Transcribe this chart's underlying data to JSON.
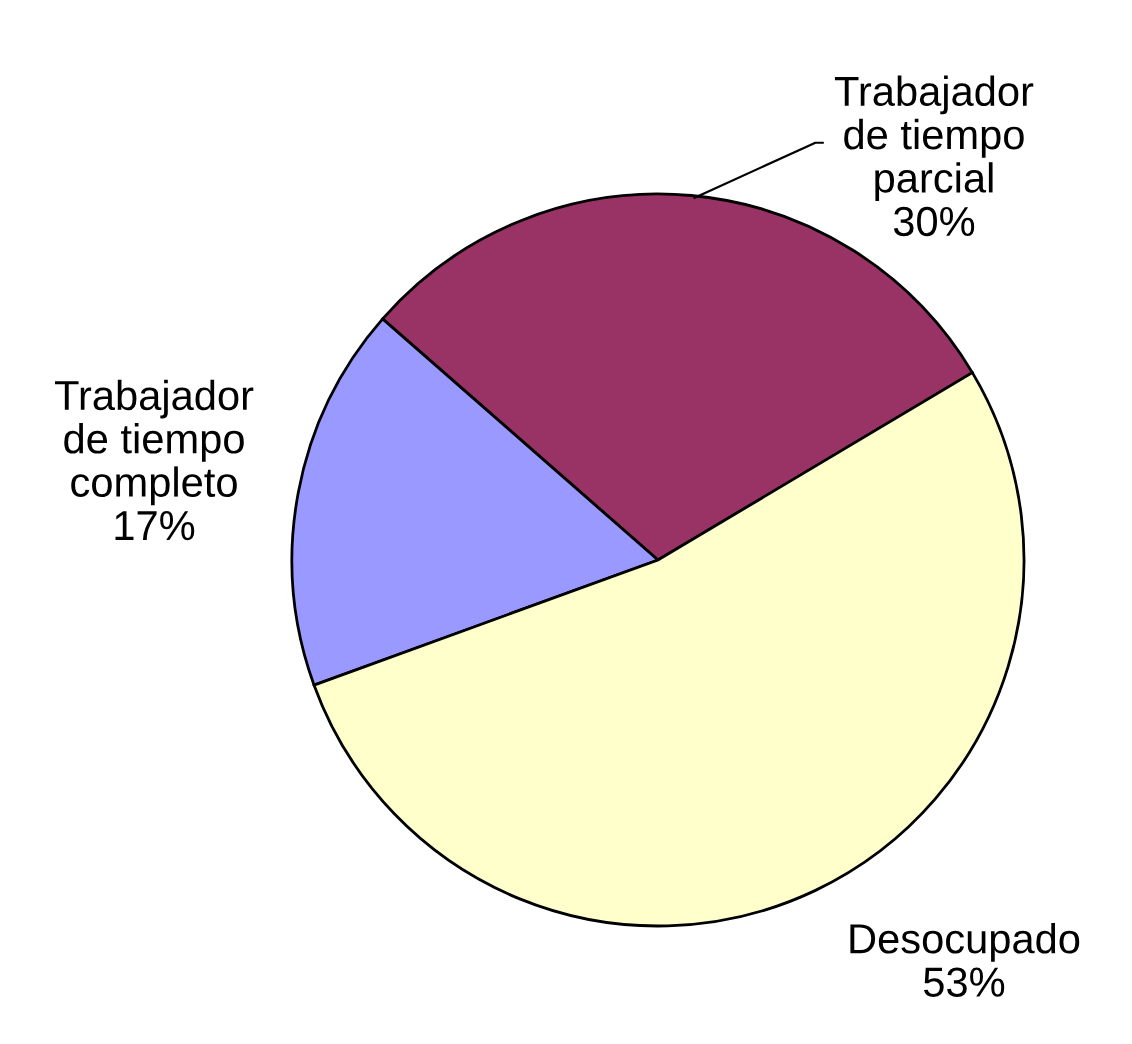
{
  "chart_data": {
    "type": "pie",
    "categories": [
      "Trabajador\nde tiempo\nparcial",
      "Trabajador\nde tiempo\ncompleto",
      "Desocupado"
    ],
    "values": [
      30,
      17,
      53
    ],
    "colors": [
      "#993366",
      "#9999ff",
      "#ffffcc"
    ],
    "value_labels": [
      "30%",
      "17%",
      "53%"
    ],
    "legend": false
  }
}
